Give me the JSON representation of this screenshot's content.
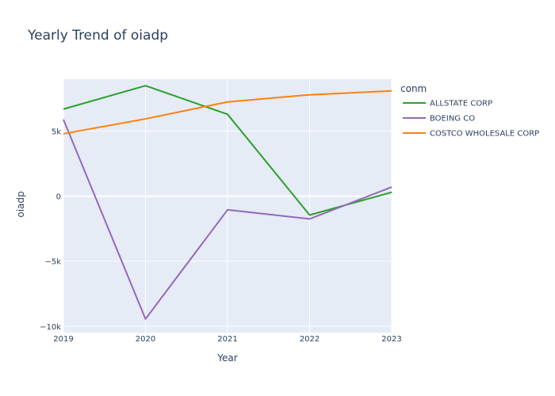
{
  "chart_data": {
    "type": "line",
    "title": "Yearly Trend of oiadp",
    "xlabel": "Year",
    "ylabel": "oiadp",
    "legend_title": "conm",
    "legend_position": "right",
    "x": [
      2019,
      2020,
      2021,
      2022,
      2023
    ],
    "xlim": [
      2019,
      2023
    ],
    "ylim": [
      -10500,
      9000
    ],
    "yticks": [
      -10000,
      -5000,
      0,
      5000
    ],
    "ytick_labels": [
      "−10k",
      "−5k",
      "0",
      "5k"
    ],
    "xtick_labels": [
      "2019",
      "2020",
      "2021",
      "2022",
      "2023"
    ],
    "grid": true,
    "colors": {
      "plot_background": "#e5ecf6",
      "grid": "#ffffff",
      "text": "#2a3f5f"
    },
    "series": [
      {
        "name": "ALLSTATE CORP",
        "color": "#2ca02c",
        "values": [
          6700,
          8500,
          6300,
          -1450,
          300
        ]
      },
      {
        "name": "BOEING CO",
        "color": "#9467bd",
        "values": [
          5900,
          -9450,
          -1050,
          -1750,
          700
        ]
      },
      {
        "name": "COSTCO WHOLESALE CORP",
        "color": "#ff7f0e",
        "values": [
          4800,
          5950,
          7250,
          7800,
          8100
        ]
      }
    ]
  }
}
